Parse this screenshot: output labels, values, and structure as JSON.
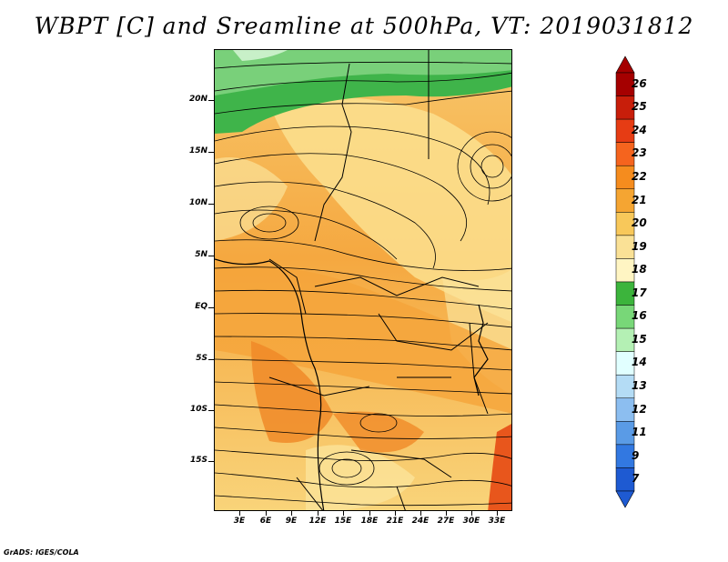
{
  "title": "WBPT [C] and Sreamline at 500hPa, VT: 2019031812",
  "credit": "GrADS: IGES/COLA",
  "map": {
    "lat_labels": [
      "20N",
      "15N",
      "10N",
      "5N",
      "EQ",
      "5S",
      "10S",
      "15S"
    ],
    "lon_labels": [
      "3E",
      "6E",
      "9E",
      "12E",
      "15E",
      "18E",
      "21E",
      "24E",
      "27E",
      "30E",
      "33E"
    ]
  },
  "colorbar": {
    "labels": [
      "26",
      "25",
      "24",
      "23",
      "22",
      "21",
      "20",
      "19",
      "18",
      "17",
      "16",
      "15",
      "14",
      "13",
      "12",
      "11",
      "9",
      "7"
    ],
    "colors": [
      "#a50000",
      "#c81e0a",
      "#e63c14",
      "#f5641e",
      "#f58c1e",
      "#f5a532",
      "#f8c85a",
      "#fae196",
      "#fff5c3",
      "#3cb43c",
      "#78d778",
      "#b4f0b4",
      "#e1ffff",
      "#b4dcf5",
      "#8cbef0",
      "#5a9be6",
      "#3278e1",
      "#1e5ad2"
    ]
  }
}
